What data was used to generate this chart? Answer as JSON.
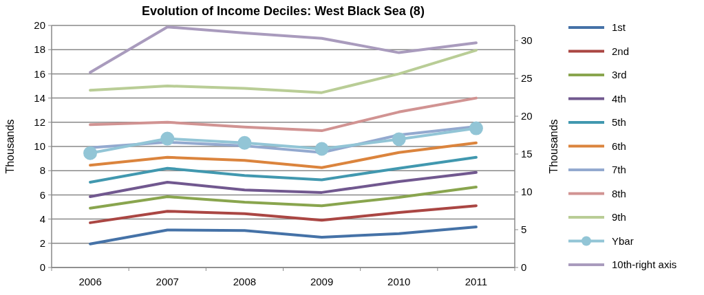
{
  "chart_data": {
    "type": "line",
    "title": "Evolution of Income Deciles: West Black Sea (8)",
    "ylabel": "Thousands",
    "y2label": "Thousands",
    "categories": [
      "2006",
      "2007",
      "2008",
      "2009",
      "2010",
      "2011"
    ],
    "ylim": [
      0,
      20
    ],
    "yticks": [
      0,
      2,
      4,
      6,
      8,
      10,
      12,
      14,
      16,
      18,
      20
    ],
    "y2lim": [
      0,
      32
    ],
    "y2ticks": [
      0,
      5,
      10,
      15,
      20,
      25,
      30
    ],
    "grid": "y",
    "legend": "right",
    "marker": "none",
    "line_style": "solid",
    "series": [
      {
        "name": "1st",
        "color": "#4572a7",
        "values": [
          1.95,
          3.1,
          3.05,
          2.5,
          2.8,
          3.35
        ]
      },
      {
        "name": "2nd",
        "color": "#aa4643",
        "values": [
          3.7,
          4.65,
          4.45,
          3.9,
          4.55,
          5.1
        ]
      },
      {
        "name": "3rd",
        "color": "#89a54e",
        "values": [
          4.9,
          5.85,
          5.4,
          5.1,
          5.8,
          6.65
        ]
      },
      {
        "name": "4th",
        "color": "#71588f",
        "values": [
          5.85,
          7.05,
          6.4,
          6.2,
          7.1,
          7.85
        ]
      },
      {
        "name": "5th",
        "color": "#4198af",
        "values": [
          7.05,
          8.2,
          7.6,
          7.25,
          8.2,
          9.1
        ]
      },
      {
        "name": "6th",
        "color": "#db843d",
        "values": [
          8.45,
          9.1,
          8.85,
          8.25,
          9.5,
          10.3
        ]
      },
      {
        "name": "7th",
        "color": "#93a9cf",
        "values": [
          9.9,
          10.35,
          10.05,
          9.5,
          10.95,
          11.65
        ]
      },
      {
        "name": "8th",
        "color": "#d19392",
        "values": [
          11.8,
          12.0,
          11.6,
          11.3,
          12.85,
          14.0
        ]
      },
      {
        "name": "9th",
        "color": "#b9cd96",
        "values": [
          14.65,
          15.0,
          14.8,
          14.45,
          16.0,
          17.95
        ]
      },
      {
        "name": "Ybar",
        "color": "#92c5d6",
        "marker": "circle",
        "values": [
          9.45,
          10.65,
          10.3,
          9.8,
          10.6,
          11.5
        ]
      },
      {
        "name": "10th-right axis",
        "color": "#a99bbd",
        "axis": "y2",
        "values": [
          25.8,
          31.8,
          31.0,
          30.3,
          28.4,
          29.7
        ]
      }
    ]
  }
}
